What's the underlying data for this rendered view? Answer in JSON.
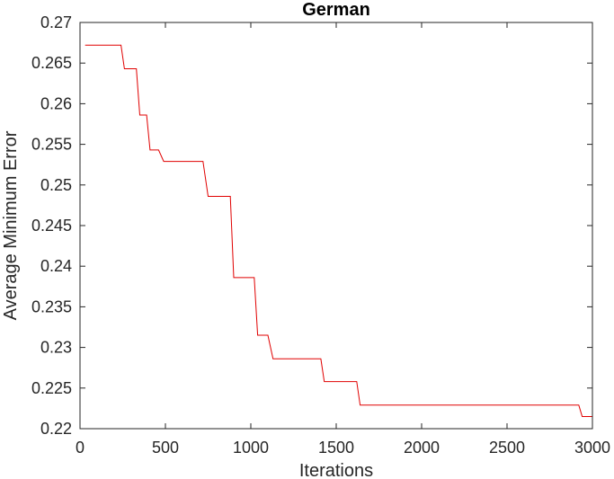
{
  "chart_data": {
    "type": "line",
    "title": "German",
    "xlabel": "Iterations",
    "ylabel": "Average Minimum Error",
    "xlim": [
      0,
      3000
    ],
    "ylim": [
      0.22,
      0.27
    ],
    "xticks": [
      "0",
      "500",
      "1000",
      "1500",
      "2000",
      "2500",
      "3000"
    ],
    "yticks": [
      "0.22",
      "0.225",
      "0.23",
      "0.235",
      "0.24",
      "0.245",
      "0.25",
      "0.255",
      "0.26",
      "0.265",
      "0.27"
    ],
    "grid": false,
    "series": [
      {
        "color": "#e00000",
        "step": true,
        "x": [
          30,
          240,
          260,
          330,
          350,
          390,
          410,
          460,
          490,
          510,
          720,
          750,
          860,
          880,
          900,
          1020,
          1040,
          1100,
          1130,
          1410,
          1430,
          1620,
          1640,
          2920,
          2940,
          3000
        ],
        "y": [
          0.2672,
          0.2672,
          0.2643,
          0.2643,
          0.2586,
          0.2586,
          0.2543,
          0.2543,
          0.2529,
          0.2529,
          0.2529,
          0.2486,
          0.2486,
          0.2486,
          0.2386,
          0.2386,
          0.2315,
          0.2315,
          0.2286,
          0.2286,
          0.2258,
          0.2258,
          0.2229,
          0.2229,
          0.2215,
          0.2215
        ]
      }
    ]
  }
}
